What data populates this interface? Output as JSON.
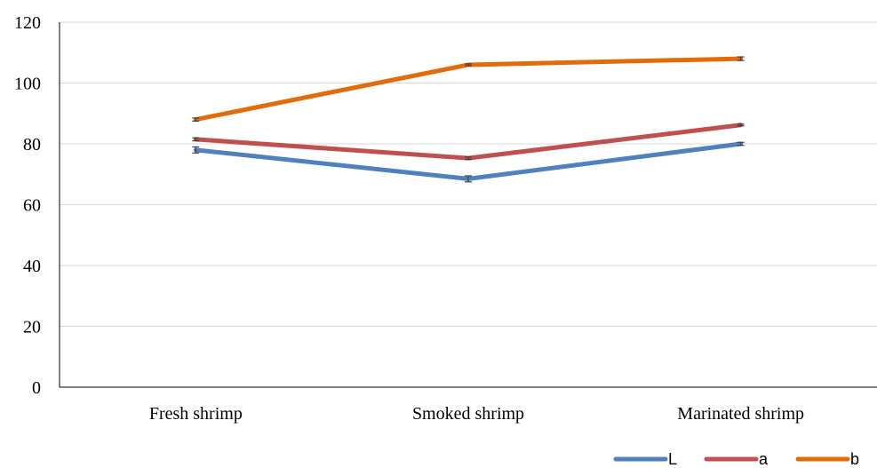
{
  "chart_data": {
    "type": "line",
    "title": "",
    "xlabel": "",
    "ylabel": "",
    "categories": [
      "Fresh shrimp",
      "Smoked shrimp",
      "Marinated shrimp"
    ],
    "ylim": [
      0,
      120
    ],
    "yticks": [
      0,
      20,
      40,
      60,
      80,
      100,
      120
    ],
    "grid": true,
    "legend_position": "bottom-right",
    "series": [
      {
        "name": "L",
        "color": "#4f81bd",
        "values": [
          78,
          68.5,
          80
        ],
        "errors": [
          1,
          1,
          0.5
        ]
      },
      {
        "name": "a",
        "color": "#c0504d",
        "values": [
          81.5,
          75.3,
          86.2
        ],
        "errors": [
          0.5,
          0.4,
          0.3
        ]
      },
      {
        "name": "b",
        "color": "#e36c0a",
        "values": [
          88,
          106,
          108
        ],
        "errors": [
          0.5,
          0.3,
          0.6
        ]
      }
    ]
  }
}
